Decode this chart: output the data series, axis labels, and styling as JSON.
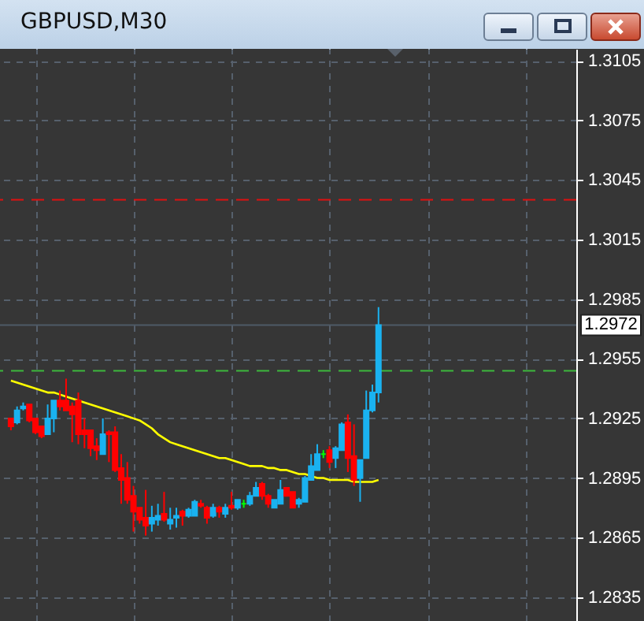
{
  "chart_data": {
    "type": "candlestick",
    "title": "GBPUSD,M30",
    "categories": [
      null,
      null,
      null,
      null,
      null,
      null,
      null,
      null,
      null,
      null,
      null,
      null,
      null,
      null,
      null,
      null,
      null,
      null,
      null,
      null,
      null,
      null,
      null,
      null,
      null,
      null,
      null,
      null,
      null,
      null,
      null,
      null,
      null,
      null,
      null,
      null,
      null,
      null,
      null,
      null,
      null,
      null,
      null,
      null,
      null,
      null,
      null,
      null,
      null,
      null,
      null,
      null,
      null,
      null,
      null,
      null,
      null,
      null,
      null,
      null,
      null
    ],
    "ohlc": [
      [
        1.2925,
        1.2925,
        1.2919,
        1.2921
      ],
      [
        1.2923,
        1.2931,
        1.2922,
        1.2929
      ],
      [
        1.293,
        1.2933,
        1.2929,
        1.2931
      ],
      [
        1.2932,
        1.2932,
        1.2923,
        1.2924
      ],
      [
        1.2925,
        1.2925,
        1.2917,
        1.2918
      ],
      [
        1.2921,
        1.2921,
        1.2915,
        1.2916
      ],
      [
        1.2917,
        1.2932,
        1.2917,
        1.2925
      ],
      [
        1.2925,
        1.2934,
        1.2918,
        1.2934
      ],
      [
        1.2934,
        1.2939,
        1.2929,
        1.2931
      ],
      [
        1.2934,
        1.2945,
        1.2929,
        1.2929
      ],
      [
        1.2931,
        1.2933,
        1.2913,
        1.2927
      ],
      [
        1.2934,
        1.2938,
        1.2912,
        1.2917
      ],
      [
        1.2919,
        1.2925,
        1.291,
        1.2917
      ],
      [
        1.2919,
        1.2919,
        1.2906,
        1.291
      ],
      [
        1.2911,
        1.2915,
        1.2904,
        1.2909
      ],
      [
        1.2907,
        1.2925,
        1.2907,
        1.2917
      ],
      [
        1.2918,
        1.2919,
        1.2903,
        1.2917
      ],
      [
        1.2918,
        1.2921,
        1.2898,
        1.2899
      ],
      [
        1.29,
        1.2907,
        1.2882,
        1.2894
      ],
      [
        1.2895,
        1.2903,
        1.2882,
        1.2884
      ],
      [
        1.2886,
        1.2891,
        1.2868,
        1.2878
      ],
      [
        1.288,
        1.288,
        1.2872,
        1.2874
      ],
      [
        1.2875,
        1.2889,
        1.2866,
        1.2871
      ],
      [
        1.2872,
        1.2881,
        1.2868,
        1.2875
      ],
      [
        1.2874,
        1.2882,
        1.2871,
        1.2876
      ],
      [
        1.2877,
        1.2888,
        1.2873,
        1.2874
      ],
      [
        1.2872,
        1.288,
        1.2869,
        1.2874
      ],
      [
        1.2875,
        1.288,
        1.287,
        1.2876
      ],
      [
        1.2878,
        1.2879,
        1.2871,
        1.2876
      ],
      [
        1.2876,
        1.288,
        1.2875,
        1.2879
      ],
      [
        1.2876,
        1.2884,
        1.2876,
        1.2883
      ],
      [
        1.2882,
        1.2884,
        1.288,
        1.2881
      ],
      [
        1.288,
        1.2881,
        1.2872,
        1.2875
      ],
      [
        1.2876,
        1.2882,
        1.2875,
        1.288
      ],
      [
        1.288,
        1.2881,
        1.2875,
        1.2878
      ],
      [
        1.2877,
        1.2882,
        1.2875,
        1.288
      ],
      [
        1.2881,
        1.2888,
        1.2879,
        1.288
      ],
      [
        1.288,
        1.2884,
        1.2879,
        1.2884
      ],
      [
        1.2882,
        1.2884,
        1.288,
        1.2882
      ],
      [
        1.2882,
        1.2888,
        1.2881,
        1.2886
      ],
      [
        1.2886,
        1.2893,
        1.2886,
        1.289
      ],
      [
        1.2892,
        1.2893,
        1.2884,
        1.2886
      ],
      [
        1.2886,
        1.2887,
        1.288,
        1.2882
      ],
      [
        1.288,
        1.2884,
        1.288,
        1.2884
      ],
      [
        1.2882,
        1.2894,
        1.2882,
        1.2889
      ],
      [
        1.289,
        1.289,
        1.2886,
        1.2886
      ],
      [
        1.2888,
        1.2888,
        1.288,
        1.288
      ],
      [
        1.2882,
        1.2885,
        1.288,
        1.2884
      ],
      [
        1.2883,
        1.2896,
        1.2883,
        1.2895
      ],
      [
        1.2894,
        1.2907,
        1.2894,
        1.2901
      ],
      [
        1.2899,
        1.2912,
        1.2899,
        1.2907
      ],
      [
        1.2907,
        1.2909,
        1.2905,
        1.2907
      ],
      [
        1.2909,
        1.2911,
        1.29,
        1.2903
      ],
      [
        1.2905,
        1.2911,
        1.29,
        1.291
      ],
      [
        1.2909,
        1.2923,
        1.2909,
        1.2922
      ],
      [
        1.2923,
        1.2927,
        1.2898,
        1.2905
      ],
      [
        1.2906,
        1.2922,
        1.2891,
        1.2894
      ],
      [
        1.2895,
        1.2904,
        1.2883,
        1.2904
      ],
      [
        1.2905,
        1.2939,
        1.2905,
        1.2929
      ],
      [
        1.2929,
        1.2942,
        1.2928,
        1.2938
      ],
      [
        1.2938,
        1.2981,
        1.2933,
        1.2972
      ]
    ],
    "colors": [
      "#ff0000",
      "#1ab2f0",
      "#1ab2f0",
      "#ff0000",
      "#ff0000",
      "#ff0000",
      "#1ab2f0",
      "#1ab2f0",
      "#ff0000",
      "#ff0000",
      "#ff0000",
      "#ff0000",
      "#ff0000",
      "#ff0000",
      "#ff0000",
      "#1ab2f0",
      "#ff0000",
      "#ff0000",
      "#ff0000",
      "#ff0000",
      "#ff0000",
      "#ff0000",
      "#ff0000",
      "#1ab2f0",
      "#1ab2f0",
      "#ff0000",
      "#1ab2f0",
      "#1ab2f0",
      "#ff0000",
      "#1ab2f0",
      "#1ab2f0",
      "#ff0000",
      "#ff0000",
      "#1ab2f0",
      "#ff0000",
      "#1ab2f0",
      "#ff0000",
      "#1ab2f0",
      "#00ff00",
      "#1ab2f0",
      "#1ab2f0",
      "#ff0000",
      "#ff0000",
      "#1ab2f0",
      "#1ab2f0",
      "#ff0000",
      "#ff0000",
      "#1ab2f0",
      "#1ab2f0",
      "#1ab2f0",
      "#1ab2f0",
      "#00ff00",
      "#ff0000",
      "#1ab2f0",
      "#1ab2f0",
      "#ff0000",
      "#ff0000",
      "#1ab2f0",
      "#1ab2f0",
      "#1ab2f0",
      "#1ab2f0"
    ],
    "series": [
      {
        "type": "line",
        "color": "#ffff00",
        "values": [
          1.2944,
          1.2943,
          1.2942,
          1.2941,
          1.294,
          1.2939,
          1.2938,
          1.2938,
          1.2937,
          1.2936,
          1.2935,
          1.2934,
          1.2933,
          1.2932,
          1.2931,
          1.293,
          1.2929,
          1.2928,
          1.2927,
          1.2926,
          1.2925,
          1.2924,
          1.2922,
          1.292,
          1.2917,
          1.2915,
          1.2913,
          1.2912,
          1.2911,
          1.291,
          1.2909,
          1.2908,
          1.2907,
          1.2906,
          1.2905,
          1.2905,
          1.2904,
          1.2903,
          1.2902,
          1.2901,
          1.2901,
          1.2901,
          1.29,
          1.29,
          1.2899,
          1.2899,
          1.2898,
          1.2897,
          1.2897,
          1.2896,
          1.2895,
          1.2895,
          1.2894,
          1.2894,
          1.2894,
          1.2894,
          1.2893,
          1.2893,
          1.2893,
          1.2893,
          1.2894
        ]
      }
    ],
    "ylim": [
      1.2823,
      1.3111
    ],
    "yticks": [
      1.2835,
      1.2865,
      1.2895,
      1.2925,
      1.2955,
      1.2985,
      1.3015,
      1.3045,
      1.3075,
      1.3105
    ],
    "ref_lines": [
      {
        "axis": "y",
        "value": 1.3035,
        "color": "#e01010",
        "line_style": "dashed"
      },
      {
        "axis": "y",
        "value": 1.2972,
        "label": "1.2972",
        "color": "#4e5a66",
        "line_style": "solid"
      },
      {
        "axis": "y",
        "value": 1.2949,
        "color": "#3cb83c",
        "line_style": "dashed"
      }
    ],
    "grid": true,
    "tick_labels": "y",
    "marker": "none"
  }
}
